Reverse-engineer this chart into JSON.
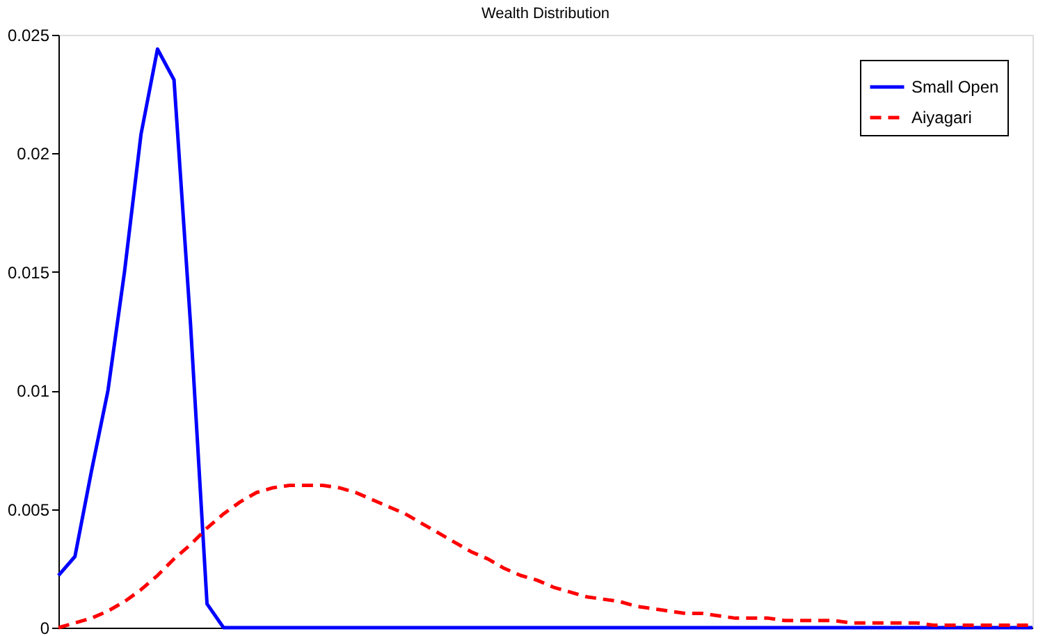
{
  "chart_data": {
    "type": "line",
    "title": "Wealth Distribution",
    "categories": [
      null,
      null,
      null,
      null,
      null,
      null,
      null,
      null,
      null,
      null,
      null,
      null,
      null,
      null,
      null,
      null,
      null,
      null,
      null,
      null,
      null,
      null,
      null,
      null,
      null,
      null,
      null,
      null,
      null,
      null,
      null,
      null,
      null,
      null,
      null,
      null,
      null,
      null,
      null,
      null,
      null,
      null,
      null,
      null,
      null,
      null,
      null,
      null,
      null,
      null,
      null,
      null,
      null,
      null,
      null,
      null,
      null,
      null,
      null,
      null
    ],
    "ylim": [
      0,
      0.025
    ],
    "yticks": [
      0,
      0.005,
      0.01,
      0.015,
      0.02,
      0.025
    ],
    "grid": false,
    "legend": "top right",
    "marker": "none",
    "series": [
      {
        "name": "Small Open",
        "color": "#0000ff",
        "line_style": "solid",
        "values": [
          0.0022,
          0.003,
          0.0066,
          0.01,
          0.015,
          0.0208,
          0.0244,
          0.0231,
          0.0128,
          0.001,
          0,
          0,
          0,
          0,
          0,
          0,
          0,
          0,
          0,
          0,
          0,
          0,
          0,
          0,
          0,
          0,
          0,
          0,
          0,
          0,
          0,
          0,
          0,
          0,
          0,
          0,
          0,
          0,
          0,
          0,
          0,
          0,
          0,
          0,
          0,
          0,
          0,
          0,
          0,
          0,
          0,
          0,
          0,
          0,
          0,
          0,
          0,
          0,
          0,
          0
        ]
      },
      {
        "name": "Aiyagari",
        "color": "#ff0000",
        "line_style": "dashed",
        "values": [
          0,
          0.0002,
          0.0004,
          0.0007,
          0.0011,
          0.0016,
          0.0022,
          0.0029,
          0.0035,
          0.0042,
          0.0048,
          0.0053,
          0.0057,
          0.0059,
          0.006,
          0.006,
          0.006,
          0.0059,
          0.0057,
          0.0054,
          0.0051,
          0.0048,
          0.0044,
          0.004,
          0.0036,
          0.0032,
          0.0029,
          0.0025,
          0.0022,
          0.002,
          0.0017,
          0.0015,
          0.0013,
          0.0012,
          0.0011,
          0.0009,
          0.0008,
          0.0007,
          0.0006,
          0.0006,
          0.0005,
          0.0004,
          0.0004,
          0.0004,
          0.0003,
          0.0003,
          0.0003,
          0.0003,
          0.0002,
          0.0002,
          0.0002,
          0.0002,
          0.0002,
          0.0001,
          0.0001,
          0.0001,
          0.0001,
          0.0001,
          0.0001,
          0.0001
        ]
      }
    ]
  }
}
